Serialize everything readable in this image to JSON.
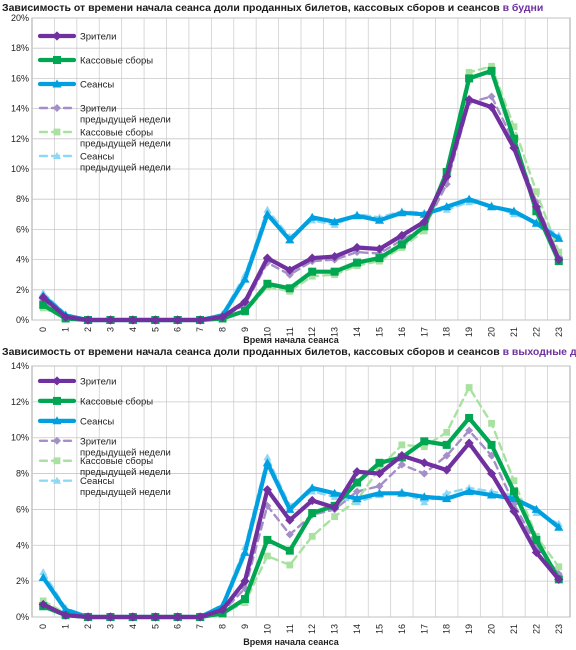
{
  "chart_data": [
    {
      "type": "line",
      "title": "Зависимость от времени начала сеанса доли проданных билетов, кассовых сборов и сеансов",
      "title_highlight": "в будни",
      "xlabel": "Время начала сеанса",
      "ylabel": "",
      "ylim": [
        0,
        20
      ],
      "y_ticks": [
        0,
        2,
        4,
        6,
        8,
        10,
        12,
        14,
        16,
        18,
        20
      ],
      "y_tick_suffix": "%",
      "grid": true,
      "legend_position": "top-left",
      "categories": [
        "0",
        "1",
        "2",
        "3",
        "4",
        "5",
        "6",
        "7",
        "8",
        "9",
        "10",
        "11",
        "12",
        "13",
        "14",
        "15",
        "16",
        "17",
        "18",
        "19",
        "20",
        "21",
        "22",
        "23"
      ],
      "series": [
        {
          "name": "Зрители",
          "color": "#7030a0",
          "dashed": false,
          "marker": "diamond",
          "values": [
            1.5,
            0.2,
            0,
            0,
            0,
            0,
            0,
            0,
            0.2,
            1.2,
            4.1,
            3.3,
            4.1,
            4.2,
            4.8,
            4.7,
            5.6,
            6.5,
            9.5,
            14.6,
            14.1,
            11.4,
            7.5,
            4.0
          ]
        },
        {
          "name": "Кассовые сборы",
          "color": "#00a651",
          "dashed": false,
          "marker": "square",
          "values": [
            1.0,
            0.1,
            0,
            0,
            0,
            0,
            0,
            0,
            0.1,
            0.6,
            2.4,
            2.1,
            3.2,
            3.2,
            3.8,
            4.1,
            5.0,
            6.2,
            9.8,
            16.0,
            16.5,
            12.0,
            7.2,
            3.9
          ]
        },
        {
          "name": "Сеансы",
          "color": "#00a0e0",
          "dashed": false,
          "marker": "triangle",
          "values": [
            1.6,
            0.3,
            0,
            0,
            0,
            0,
            0,
            0,
            0.3,
            2.7,
            7.0,
            5.3,
            6.8,
            6.5,
            6.9,
            6.6,
            7.1,
            7.0,
            7.5,
            8.0,
            7.5,
            7.2,
            6.4,
            5.4
          ]
        },
        {
          "name": "Зрители предыдущей недели",
          "color": "#a58fc9",
          "dashed": true,
          "marker": "diamond",
          "values": [
            1.3,
            0.2,
            0,
            0,
            0,
            0,
            0,
            0,
            0.2,
            1.0,
            3.8,
            3.0,
            3.9,
            4.0,
            4.5,
            4.4,
            5.3,
            6.1,
            9.0,
            14.4,
            14.8,
            11.8,
            7.8,
            4.2
          ]
        },
        {
          "name": "Кассовые сборы предыдущей недели",
          "color": "#a9e2a0",
          "dashed": true,
          "marker": "square",
          "values": [
            0.8,
            0.1,
            0,
            0,
            0,
            0,
            0,
            0,
            0.1,
            0.5,
            2.2,
            1.9,
            2.9,
            3.0,
            3.6,
            3.9,
            4.8,
            5.9,
            9.6,
            16.4,
            16.8,
            12.8,
            8.5,
            4.5
          ]
        },
        {
          "name": "Сеансы предыдущей недели",
          "color": "#8fd8f5",
          "dashed": true,
          "marker": "triangle",
          "values": [
            1.8,
            0.4,
            0,
            0,
            0,
            0,
            0,
            0,
            0.4,
            3.0,
            7.3,
            5.5,
            6.6,
            6.3,
            7.0,
            6.8,
            7.2,
            7.1,
            7.3,
            7.8,
            7.6,
            7.0,
            6.5,
            5.6
          ]
        }
      ]
    },
    {
      "type": "line",
      "title": "Зависимость от времени начала сеанса доли проданных билетов, кассовых сборов и сеансов",
      "title_highlight": "в выходные дни",
      "xlabel": "Время начала сеанса",
      "ylabel": "",
      "ylim": [
        0,
        14
      ],
      "y_ticks": [
        0,
        2,
        4,
        6,
        8,
        10,
        12,
        14
      ],
      "y_tick_suffix": "%",
      "grid": true,
      "legend_position": "top-left",
      "categories": [
        "0",
        "1",
        "2",
        "3",
        "4",
        "5",
        "6",
        "7",
        "8",
        "9",
        "10",
        "11",
        "12",
        "13",
        "14",
        "15",
        "16",
        "17",
        "18",
        "19",
        "20",
        "21",
        "22",
        "23"
      ],
      "series": [
        {
          "name": "Зрители",
          "color": "#7030a0",
          "dashed": false,
          "marker": "diamond",
          "values": [
            0.7,
            0.1,
            0,
            0,
            0,
            0,
            0,
            0,
            0.4,
            2.0,
            7.1,
            5.4,
            6.5,
            6.1,
            8.1,
            8.0,
            9.0,
            8.6,
            8.2,
            9.7,
            8.0,
            5.9,
            3.6,
            2.1
          ]
        },
        {
          "name": "Кассовые сборы",
          "color": "#00a651",
          "dashed": false,
          "marker": "square",
          "values": [
            0.6,
            0.1,
            0,
            0,
            0,
            0,
            0,
            0,
            0.2,
            1.0,
            4.3,
            3.7,
            5.8,
            6.2,
            7.5,
            8.6,
            8.9,
            9.8,
            9.6,
            11.1,
            9.6,
            7.0,
            4.3,
            2.1
          ]
        },
        {
          "name": "Сеансы",
          "color": "#00a0e0",
          "dashed": false,
          "marker": "triangle",
          "values": [
            2.2,
            0.4,
            0,
            0,
            0,
            0,
            0,
            0,
            0.6,
            3.6,
            8.6,
            6.0,
            7.2,
            6.9,
            6.6,
            6.9,
            6.9,
            6.7,
            6.6,
            7.0,
            6.8,
            6.6,
            6.0,
            5.0
          ]
        },
        {
          "name": "Зрители предыдущей недели",
          "color": "#a58fc9",
          "dashed": true,
          "marker": "diamond",
          "values": [
            0.8,
            0.2,
            0,
            0,
            0,
            0,
            0,
            0,
            0.3,
            1.6,
            6.2,
            4.6,
            5.7,
            6.0,
            7.0,
            7.3,
            8.5,
            8.0,
            9.0,
            10.4,
            9.0,
            6.3,
            4.0,
            2.4
          ]
        },
        {
          "name": "Кассовые сборы предыдущей недели",
          "color": "#a9e2a0",
          "dashed": true,
          "marker": "square",
          "values": [
            0.9,
            0.2,
            0,
            0,
            0,
            0,
            0,
            0,
            0.2,
            0.8,
            3.4,
            2.9,
            4.5,
            5.6,
            6.5,
            8.3,
            9.6,
            9.5,
            10.3,
            12.8,
            10.8,
            7.6,
            4.5,
            2.8
          ]
        },
        {
          "name": "Сеансы предыдущей недели",
          "color": "#8fd8f5",
          "dashed": true,
          "marker": "triangle",
          "values": [
            2.5,
            0.5,
            0,
            0,
            0,
            0,
            0,
            0,
            0.7,
            3.9,
            8.9,
            6.2,
            7.0,
            6.7,
            6.4,
            6.8,
            7.0,
            6.4,
            6.9,
            7.2,
            7.0,
            6.8,
            5.8,
            5.2
          ]
        }
      ]
    }
  ]
}
